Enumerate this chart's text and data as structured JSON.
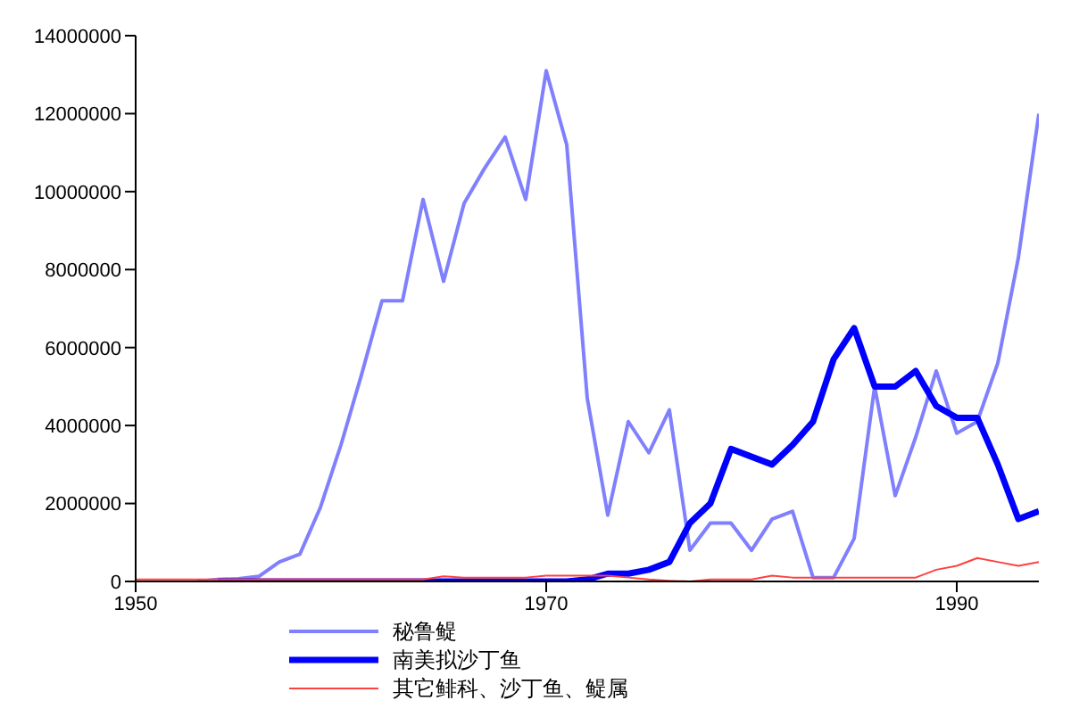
{
  "chart_data": {
    "type": "line",
    "x": [
      1950,
      1951,
      1952,
      1953,
      1954,
      1955,
      1956,
      1957,
      1958,
      1959,
      1960,
      1961,
      1962,
      1963,
      1964,
      1965,
      1966,
      1967,
      1968,
      1969,
      1970,
      1971,
      1972,
      1973,
      1974,
      1975,
      1976,
      1977,
      1978,
      1979,
      1980,
      1981,
      1982,
      1983,
      1984,
      1985,
      1986,
      1987,
      1988,
      1989,
      1990,
      1991,
      1992,
      1993,
      1994
    ],
    "series": [
      {
        "name": "秘鲁鳀",
        "color": "#8080ff",
        "values": [
          null,
          null,
          null,
          0,
          50000.0,
          70000.0,
          130000.0,
          500000.0,
          700000.0,
          1900000.0,
          3500000.0,
          5300000.0,
          7200000.0,
          7200000.0,
          9800000.0,
          7700000.0,
          9700000.0,
          10600000.0,
          11400000.0,
          9800000.0,
          13100000.0,
          11200000.0,
          4700000.0,
          1700000.0,
          4100000.0,
          3300000.0,
          4400000.0,
          800000.0,
          1500000.0,
          1500000.0,
          800000.0,
          1600000.0,
          1800000.0,
          100000.0,
          100000.0,
          1100000.0,
          5000000.0,
          2200000.0,
          3700000.0,
          5400000.0,
          3800000.0,
          4100000.0,
          5600000.0,
          8300000.0,
          12000000.0
        ]
      },
      {
        "name": "南美拟沙丁鱼",
        "color": "#0000ff",
        "values": [
          null,
          null,
          null,
          null,
          0,
          0,
          0,
          0,
          0,
          0,
          0,
          0,
          0,
          0,
          0,
          0,
          0,
          0,
          0,
          0,
          0,
          0,
          50000.0,
          200000.0,
          200000.0,
          300000.0,
          500000.0,
          1500000.0,
          2000000.0,
          3400000.0,
          3200000.0,
          3000000.0,
          3500000.0,
          4100000.0,
          5700000.0,
          6500000.0,
          5000000.0,
          5000000.0,
          5400000.0,
          4500000.0,
          4200000.0,
          4200000.0,
          3000000.0,
          1600000.0,
          1800000.0
        ]
      },
      {
        "name": "其它鲱科、沙丁鱼、鳀属",
        "color": "#ff4040",
        "values": [
          50000.0,
          50000.0,
          50000.0,
          50000.0,
          50000.0,
          50000.0,
          50000.0,
          50000.0,
          50000.0,
          50000.0,
          50000.0,
          50000.0,
          50000.0,
          50000.0,
          50000.0,
          130000.0,
          100000.0,
          100000.0,
          100000.0,
          100000.0,
          150000.0,
          150000.0,
          150000.0,
          150000.0,
          100000.0,
          50000.0,
          20000.0,
          0,
          50000.0,
          50000.0,
          50000.0,
          150000.0,
          100000.0,
          100000.0,
          100000.0,
          100000.0,
          100000.0,
          100000.0,
          100000.0,
          300000.0,
          400000.0,
          600000.0,
          500000.0,
          400000.0,
          500000.0
        ]
      }
    ],
    "xlim": [
      1950,
      1994
    ],
    "xticks": [
      1950,
      1970,
      1990
    ],
    "ylim": [
      0,
      14000000
    ],
    "yticks": [
      0,
      2000000,
      4000000,
      6000000,
      8000000,
      10000000,
      12000000,
      14000000
    ],
    "grid": false,
    "legend": "bottom",
    "marker": "none"
  }
}
